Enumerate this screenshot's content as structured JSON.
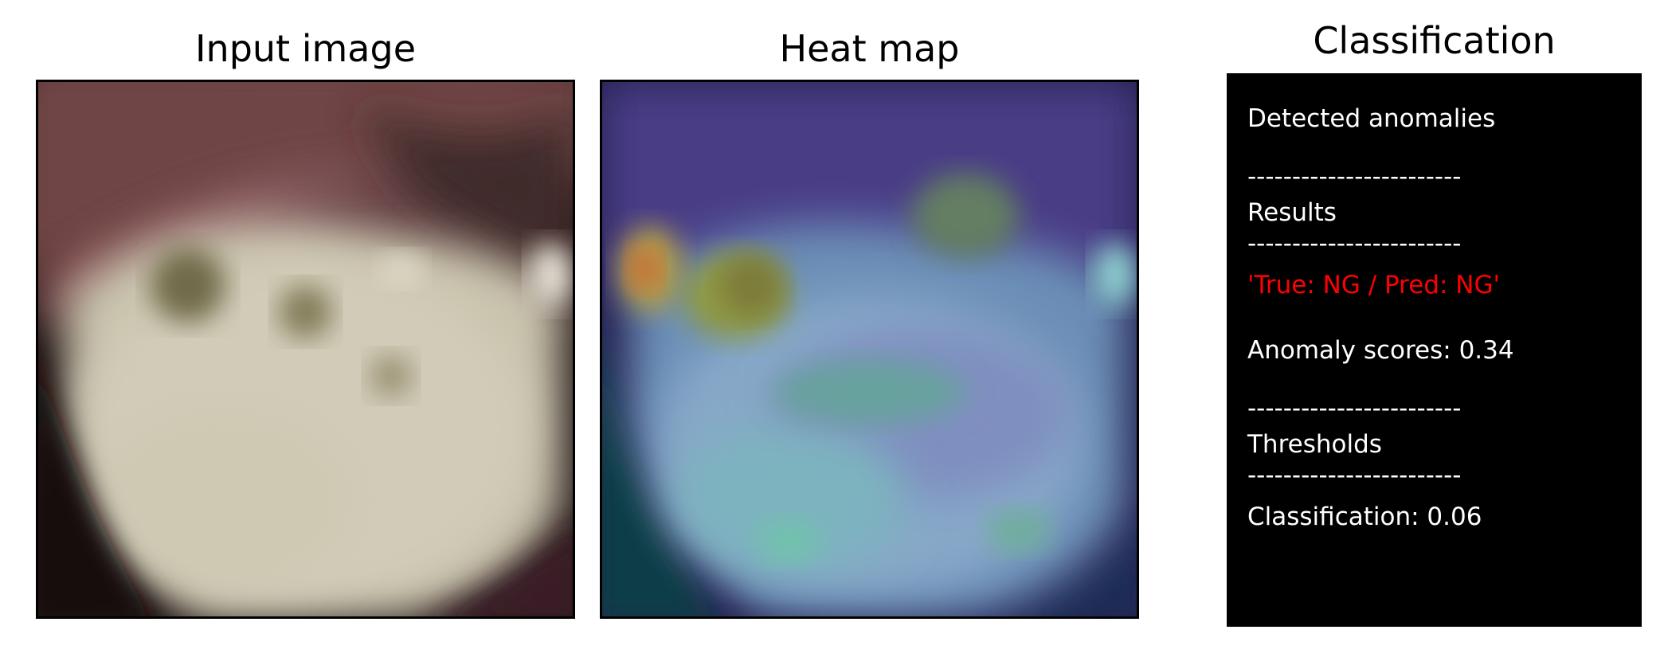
{
  "panels": {
    "input_title": "Input image",
    "heatmap_title": "Heat map",
    "classification_title": "Classification"
  },
  "classification": {
    "detected_label": "Detected anomalies",
    "separator": "------------------------",
    "results_label": "Results",
    "prediction": "'True: NG / Pred: NG'",
    "anomaly_score": "Anomaly scores: 0.34",
    "thresholds_label": "Thresholds",
    "classification_threshold": "Classification: 0.06"
  },
  "colors": {
    "prediction_text": "#ff0000",
    "box_background": "#000000",
    "box_text": "#ffffff"
  }
}
